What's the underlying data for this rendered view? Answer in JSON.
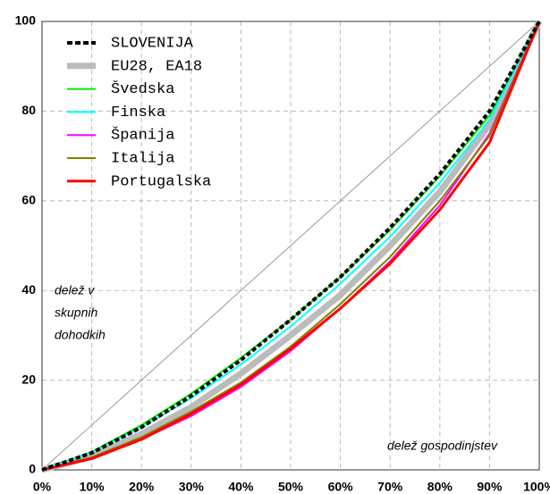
{
  "chart_data": {
    "type": "line",
    "x": [
      0,
      10,
      20,
      30,
      40,
      50,
      60,
      70,
      80,
      90,
      100
    ],
    "series": [
      {
        "name": "SLOVENIJA",
        "color": "#000000",
        "dashed": true,
        "values": [
          0,
          3.8,
          9.5,
          16.5,
          24.5,
          33.5,
          43,
          54,
          66,
          80,
          100
        ]
      },
      {
        "name": "EU28, EA18",
        "color": "#bbbbbb",
        "values": [
          0,
          3,
          8,
          14,
          21.5,
          30,
          39,
          50,
          62,
          77,
          100
        ]
      },
      {
        "name": "Švedska",
        "color": "#00ee00",
        "values": [
          0,
          4,
          10,
          17,
          25,
          33.5,
          43,
          53.5,
          65.5,
          79,
          100
        ]
      },
      {
        "name": "Finska",
        "color": "#00ffff",
        "values": [
          0,
          3.8,
          9.5,
          16,
          23.5,
          32,
          41.5,
          52,
          64,
          78,
          100
        ]
      },
      {
        "name": "Španija",
        "color": "#ff00ff",
        "values": [
          0,
          2.5,
          6.8,
          12,
          18.5,
          26.5,
          36,
          46.5,
          59,
          75,
          100
        ]
      },
      {
        "name": "Italija",
        "color": "#808000",
        "values": [
          0,
          2.8,
          7.3,
          13,
          19.5,
          27.5,
          37,
          47.5,
          60,
          74.5,
          100
        ]
      },
      {
        "name": "Portugalska",
        "color": "#ff0000",
        "values": [
          0,
          2.5,
          6.8,
          12.5,
          19,
          27,
          36,
          46,
          58,
          73,
          100
        ]
      }
    ],
    "xlim": [
      0,
      100
    ],
    "ylim": [
      0,
      100
    ],
    "xticks": [
      {
        "value": 0,
        "label": "0%"
      },
      {
        "value": 10,
        "label": "10%"
      },
      {
        "value": 20,
        "label": "20%"
      },
      {
        "value": 30,
        "label": "30%"
      },
      {
        "value": 40,
        "label": "40%"
      },
      {
        "value": 50,
        "label": "50%"
      },
      {
        "value": 60,
        "label": "60%"
      },
      {
        "value": 70,
        "label": "70%"
      },
      {
        "value": 80,
        "label": "80%"
      },
      {
        "value": 90,
        "label": "90%"
      },
      {
        "value": 100,
        "label": "100%"
      }
    ],
    "yticks": [
      0,
      20,
      40,
      60,
      80,
      100
    ],
    "ylabel": [
      "delež v",
      "skupnih",
      "dohodkih"
    ],
    "xlabel": "delež gospodinjstev",
    "grid": true,
    "equality_line": true,
    "legend": "upper left"
  }
}
